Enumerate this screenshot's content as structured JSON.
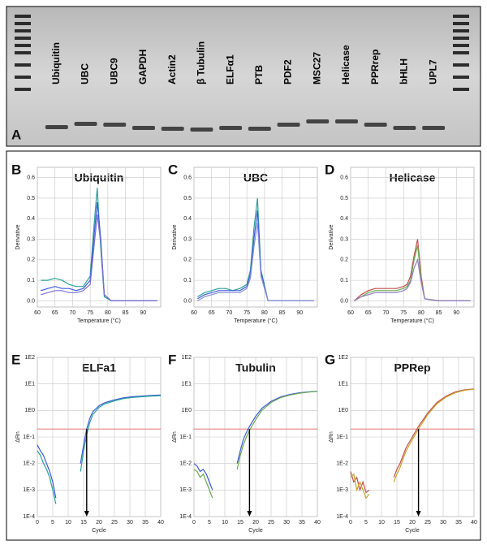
{
  "gel": {
    "panel": "A",
    "lanes": [
      "Ubiquitin",
      "UBC",
      "UBC9",
      "GAPDH",
      "Actin2",
      "β Tubulin",
      "ELFα1",
      "PTB",
      "PDF2",
      "MSC27",
      "Helicase",
      "PPRrep",
      "bHLH",
      "UPL7"
    ]
  },
  "chart_data": [
    {
      "type": "line",
      "panel": "B",
      "title": "Ubiquitin",
      "xlabel": "Temperature (°C)",
      "ylabel": "Derivative",
      "x": [
        61,
        63,
        65,
        67,
        69,
        71,
        73,
        75,
        76,
        77,
        78,
        79,
        81,
        85,
        90,
        94
      ],
      "series": [
        {
          "color": "#2aa198",
          "values": [
            0.1,
            0.1,
            0.11,
            0.1,
            0.08,
            0.07,
            0.07,
            0.12,
            0.35,
            0.55,
            0.25,
            0.02,
            0,
            0,
            0,
            0
          ]
        },
        {
          "color": "#3b5bdb",
          "values": [
            0.05,
            0.06,
            0.07,
            0.06,
            0.06,
            0.05,
            0.06,
            0.1,
            0.3,
            0.48,
            0.3,
            0.03,
            0,
            0,
            0,
            0
          ]
        },
        {
          "color": "#7b6fd0",
          "values": [
            0.03,
            0.04,
            0.05,
            0.05,
            0.04,
            0.04,
            0.05,
            0.08,
            0.25,
            0.42,
            0.28,
            0.03,
            0,
            0,
            0,
            0
          ]
        }
      ],
      "xlim": [
        60,
        95
      ],
      "ylim": [
        -0.03,
        0.65
      ],
      "xticks": [
        60,
        65,
        70,
        75,
        80,
        85,
        90
      ],
      "yticks": [
        {
          "value": 0,
          "label": "0.0"
        },
        0.1,
        0.2,
        0.3,
        0.4,
        0.5,
        0.6
      ],
      "grid": true
    },
    {
      "type": "line",
      "panel": "C",
      "title": "UBC",
      "xlabel": "Temperature (°C)",
      "ylabel": "Derivative",
      "x": [
        61,
        63,
        65,
        67,
        69,
        71,
        73,
        75,
        76,
        77,
        78,
        79,
        81,
        85,
        90,
        94
      ],
      "series": [
        {
          "color": "#2aa198",
          "values": [
            0.02,
            0.04,
            0.05,
            0.06,
            0.06,
            0.05,
            0.06,
            0.08,
            0.15,
            0.35,
            0.5,
            0.15,
            0,
            0,
            0,
            0
          ]
        },
        {
          "color": "#3b5bdb",
          "values": [
            0.01,
            0.03,
            0.04,
            0.05,
            0.05,
            0.05,
            0.05,
            0.07,
            0.13,
            0.3,
            0.44,
            0.14,
            0,
            0,
            0,
            0
          ]
        },
        {
          "color": "#8a8fd8",
          "values": [
            0,
            0.02,
            0.03,
            0.04,
            0.04,
            0.04,
            0.04,
            0.06,
            0.11,
            0.26,
            0.38,
            0.12,
            0,
            0,
            0,
            0
          ]
        }
      ],
      "xlim": [
        60,
        95
      ],
      "ylim": [
        -0.03,
        0.65
      ],
      "xticks": [
        60,
        65,
        70,
        75,
        80,
        85,
        90
      ],
      "yticks": [
        {
          "value": 0,
          "label": "0.0"
        },
        0.1,
        0.2,
        0.3,
        0.4,
        0.5,
        0.6
      ],
      "grid": true
    },
    {
      "type": "line",
      "panel": "D",
      "title": "Helicase",
      "xlabel": "Temperature (°C)",
      "ylabel": "Derivative",
      "x": [
        61,
        63,
        65,
        67,
        69,
        71,
        73,
        75,
        76,
        77,
        78,
        79,
        80,
        81,
        85,
        90,
        94
      ],
      "series": [
        {
          "color": "#c0504d",
          "values": [
            0,
            0.03,
            0.05,
            0.06,
            0.06,
            0.06,
            0.06,
            0.07,
            0.08,
            0.12,
            0.22,
            0.3,
            0.12,
            0.01,
            0,
            0,
            0
          ]
        },
        {
          "color": "#6aa84f",
          "values": [
            0,
            0.02,
            0.04,
            0.05,
            0.05,
            0.05,
            0.05,
            0.06,
            0.07,
            0.1,
            0.2,
            0.27,
            0.1,
            0.01,
            0,
            0,
            0
          ]
        },
        {
          "color": "#8e7cc3",
          "values": [
            0,
            0.02,
            0.03,
            0.04,
            0.04,
            0.04,
            0.04,
            0.05,
            0.06,
            0.09,
            0.16,
            0.2,
            0.09,
            0.01,
            0,
            0,
            0
          ]
        }
      ],
      "xlim": [
        60,
        95
      ],
      "ylim": [
        -0.03,
        0.65
      ],
      "xticks": [
        60,
        65,
        70,
        75,
        80,
        85,
        90
      ],
      "yticks": [
        {
          "value": 0,
          "label": "0.0"
        },
        0.1,
        0.2,
        0.3,
        0.4,
        0.5,
        0.6
      ],
      "grid": true
    },
    {
      "type": "line",
      "log_scale": true,
      "panel": "E",
      "title": "ELFa1",
      "xlabel": "Cycle",
      "ylabel": "ΔRn",
      "x": [
        0,
        1,
        2,
        3,
        4,
        5,
        6,
        10,
        14,
        15,
        16,
        17,
        18,
        20,
        22,
        25,
        28,
        31,
        34,
        37,
        40
      ],
      "series": [
        {
          "color": "#3b5bdb",
          "values": [
            0.05,
            0.03,
            0.02,
            0.01,
            0.005,
            0.002,
            0.0005,
            null,
            0.01,
            0.05,
            0.2,
            0.5,
            0.9,
            1.5,
            2,
            2.5,
            3,
            3.3,
            3.5,
            3.7,
            3.8
          ]
        },
        {
          "color": "#2aa198",
          "values": [
            0.03,
            0.02,
            0.01,
            0.006,
            0.003,
            0.001,
            0.0003,
            null,
            0.005,
            0.03,
            0.12,
            0.35,
            0.7,
            1.3,
            1.8,
            2.3,
            2.8,
            3.1,
            3.3,
            3.5,
            3.6
          ]
        }
      ],
      "threshold": 0.2,
      "threshold_color": "#e06060",
      "arrow_x": 16,
      "xlim": [
        0,
        40
      ],
      "ylim": [
        0.0001,
        100
      ],
      "xticks": [
        0,
        5,
        10,
        15,
        20,
        25,
        30,
        35,
        40
      ],
      "yticks": [
        {
          "value": 0.0001,
          "label": "1E-4"
        },
        {
          "value": 0.001,
          "label": "1E-3"
        },
        {
          "value": 0.01,
          "label": "1E-2"
        },
        {
          "value": 0.1,
          "label": "1E-1"
        },
        {
          "value": 1,
          "label": "1E0"
        },
        {
          "value": 10,
          "label": "1E1"
        },
        {
          "value": 100,
          "label": "1E2"
        }
      ],
      "grid": true
    },
    {
      "type": "line",
      "log_scale": true,
      "panel": "F",
      "title": "Tubulin",
      "xlabel": "Cycle",
      "ylabel": "ΔRn",
      "x": [
        0,
        1,
        2,
        3,
        4,
        5,
        6,
        10,
        14,
        15,
        16,
        17,
        18,
        20,
        22,
        25,
        28,
        31,
        34,
        37,
        40
      ],
      "series": [
        {
          "color": "#3b5bdb",
          "values": [
            0.01,
            0.008,
            0.005,
            0.006,
            0.004,
            0.002,
            0.001,
            null,
            0.01,
            0.03,
            0.08,
            0.15,
            0.25,
            0.6,
            1.2,
            2.2,
            3.2,
            4,
            4.6,
            5,
            5.3
          ]
        },
        {
          "color": "#6aa84f",
          "values": [
            0.006,
            0.005,
            0.003,
            0.004,
            0.002,
            0.001,
            0.0005,
            null,
            0.006,
            0.02,
            0.05,
            0.1,
            0.18,
            0.45,
            1,
            2,
            3,
            3.8,
            4.4,
            4.9,
            5.2
          ]
        }
      ],
      "threshold": 0.2,
      "threshold_color": "#e06060",
      "arrow_x": 18,
      "xlim": [
        0,
        40
      ],
      "ylim": [
        0.0001,
        100
      ],
      "xticks": [
        0,
        5,
        10,
        15,
        20,
        25,
        30,
        35,
        40
      ],
      "yticks": [
        {
          "value": 0.0001,
          "label": "1E-4"
        },
        {
          "value": 0.001,
          "label": "1E-3"
        },
        {
          "value": 0.01,
          "label": "1E-2"
        },
        {
          "value": 0.1,
          "label": "1E-1"
        },
        {
          "value": 1,
          "label": "1E0"
        },
        {
          "value": 10,
          "label": "1E1"
        },
        {
          "value": 100,
          "label": "1E2"
        }
      ],
      "grid": true
    },
    {
      "type": "line",
      "log_scale": true,
      "panel": "G",
      "title": "PPRep",
      "xlabel": "Cycle",
      "ylabel": "ΔRn",
      "x": [
        0,
        1,
        2,
        3,
        4,
        5,
        6,
        10,
        14,
        15,
        16,
        17,
        18,
        20,
        22,
        25,
        28,
        31,
        34,
        37,
        40
      ],
      "series": [
        {
          "color": "#c0504d",
          "values": [
            0.005,
            0.002,
            0.003,
            0.001,
            0.002,
            0.0008,
            0.001,
            null,
            0.003,
            0.006,
            0.01,
            0.02,
            0.04,
            0.1,
            0.25,
            0.8,
            2,
            3.5,
            5,
            6,
            6.5
          ]
        },
        {
          "color": "#c9a227",
          "values": [
            0.003,
            0.004,
            0.001,
            0.002,
            0.001,
            0.0005,
            0.0007,
            null,
            0.002,
            0.004,
            0.007,
            0.015,
            0.03,
            0.08,
            0.2,
            0.7,
            1.8,
            3.2,
            4.7,
            5.8,
            6.3
          ]
        }
      ],
      "threshold": 0.2,
      "threshold_color": "#e06060",
      "arrow_x": 22,
      "xlim": [
        0,
        40
      ],
      "ylim": [
        0.0001,
        100
      ],
      "xticks": [
        0,
        5,
        10,
        15,
        20,
        25,
        30,
        35,
        40
      ],
      "yticks": [
        {
          "value": 0.0001,
          "label": "1E-4"
        },
        {
          "value": 0.001,
          "label": "1E-3"
        },
        {
          "value": 0.01,
          "label": "1E-2"
        },
        {
          "value": 0.1,
          "label": "1E-1"
        },
        {
          "value": 1,
          "label": "1E0"
        },
        {
          "value": 10,
          "label": "1E1"
        },
        {
          "value": 100,
          "label": "1E2"
        }
      ],
      "grid": true
    }
  ]
}
